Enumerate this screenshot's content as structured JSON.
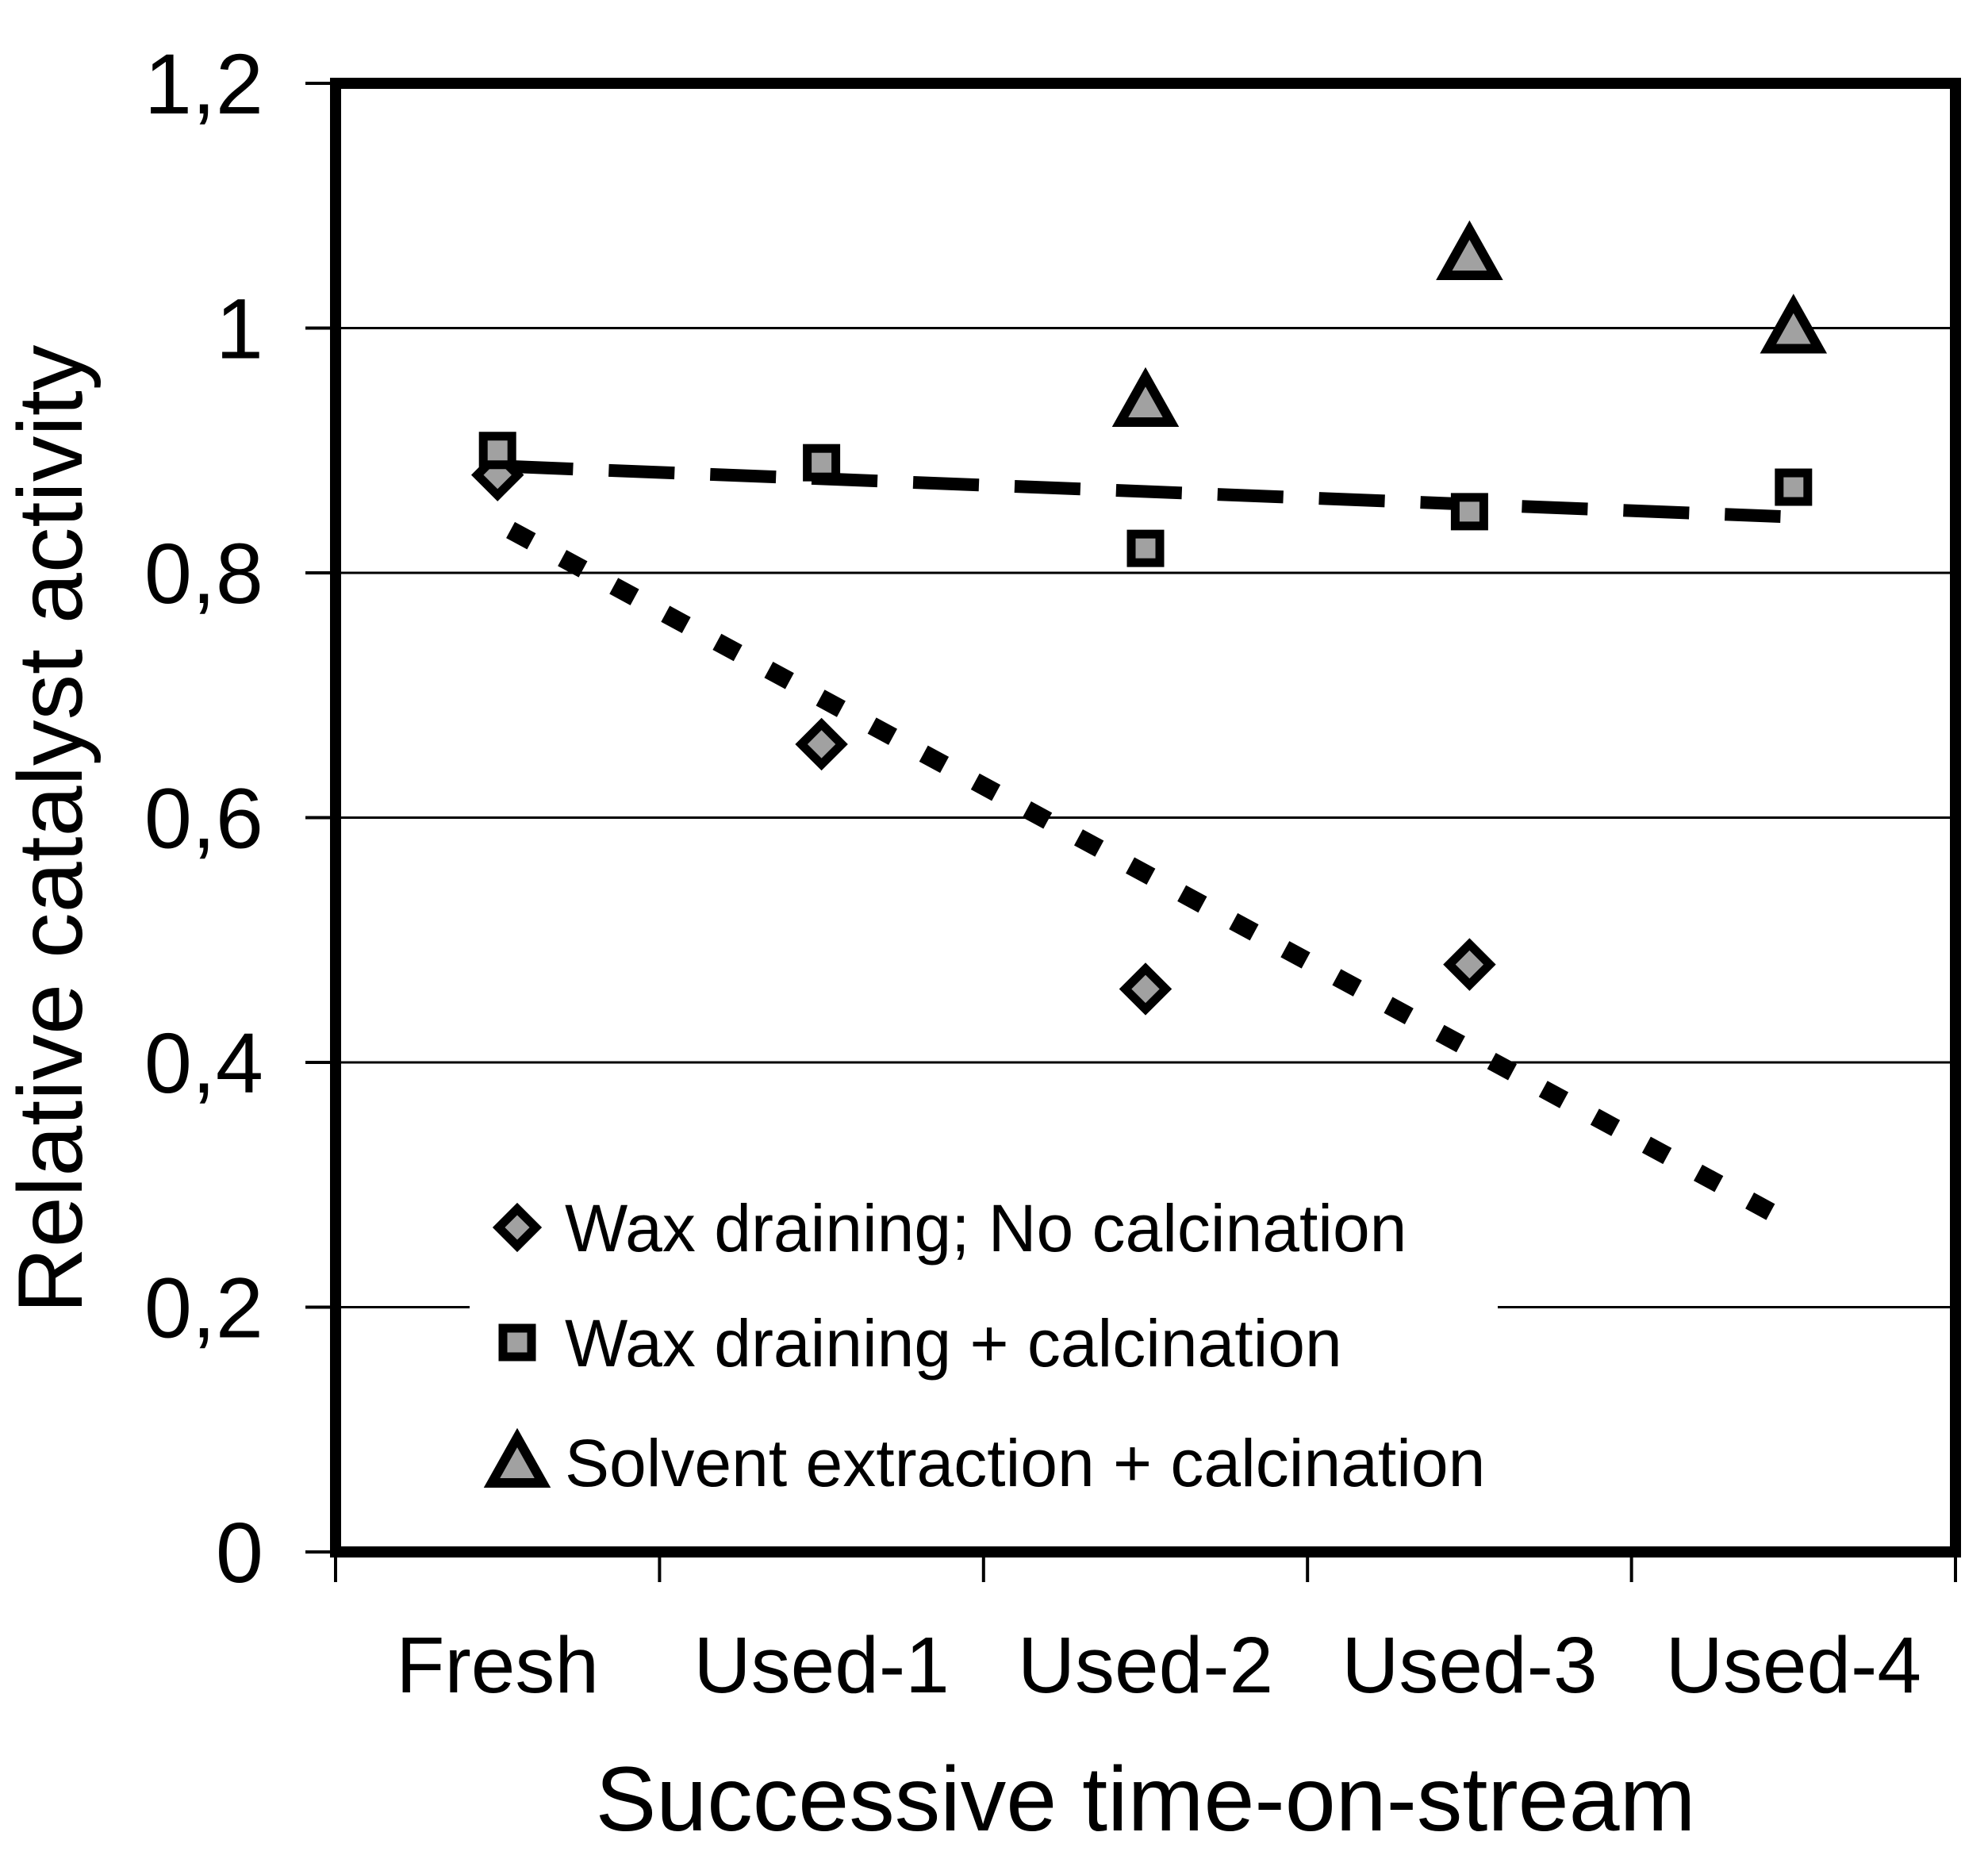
{
  "chart_data": {
    "type": "scatter",
    "title": "",
    "xlabel": "Successive time-on-stream",
    "ylabel": "Relative catalyst activity",
    "categories": [
      "Fresh",
      "Used-1",
      "Used-2",
      "Used-3",
      "Used-4"
    ],
    "ylim": [
      0,
      1.2
    ],
    "y_ticks": [
      {
        "value": 0,
        "label": "0"
      },
      {
        "value": 0.2,
        "label": "0,2"
      },
      {
        "value": 0.4,
        "label": "0,4"
      },
      {
        "value": 0.6,
        "label": "0,6"
      },
      {
        "value": 0.8,
        "label": "0,8"
      },
      {
        "value": 1,
        "label": "1"
      },
      {
        "value": 1.2,
        "label": "1,2"
      }
    ],
    "grid_values": [
      0.2,
      0.4,
      0.6,
      0.8,
      1.0
    ],
    "grid_on": true,
    "series": [
      {
        "name": "Wax draining; No calcination",
        "marker": "diamond",
        "points": [
          {
            "category": "Fresh",
            "cat": 0,
            "y": 0.88
          },
          {
            "category": "Used-1",
            "cat": 1,
            "y": 0.66
          },
          {
            "category": "Used-2",
            "cat": 2,
            "y": 0.46
          },
          {
            "category": "Used-3",
            "cat": 3,
            "y": 0.48
          }
        ]
      },
      {
        "name": "Wax draining + calcination",
        "marker": "square",
        "points": [
          {
            "category": "Fresh",
            "cat": 0,
            "y": 0.9
          },
          {
            "category": "Used-1",
            "cat": 1,
            "y": 0.89
          },
          {
            "category": "Used-2",
            "cat": 2,
            "y": 0.82
          },
          {
            "category": "Used-3",
            "cat": 3,
            "y": 0.85
          },
          {
            "category": "Used-4",
            "cat": 4,
            "y": 0.87
          }
        ]
      },
      {
        "name": "Solvent extraction + calcination",
        "marker": "triangle",
        "points": [
          {
            "category": "Used-2",
            "cat": 2,
            "y": 0.94
          },
          {
            "category": "Used-3",
            "cat": 3,
            "y": 1.06
          },
          {
            "category": "Used-4",
            "cat": 4,
            "y": 1.0
          }
        ]
      }
    ],
    "trendlines": [
      {
        "for_series": "Wax draining + calcination",
        "style": "long-dash",
        "from": {
          "cat": 0.03,
          "y": 0.887
        },
        "to": {
          "cat": 3.96,
          "y": 0.846
        }
      },
      {
        "for_series": "Wax draining; No calcination",
        "style": "dotted",
        "from": {
          "cat": 0.04,
          "y": 0.835
        },
        "to": {
          "cat": 3.97,
          "y": 0.272
        }
      }
    ],
    "legend": {
      "position": "inside-bottom-left",
      "items": [
        "Wax draining; No calcination",
        "Wax draining + calcination",
        "Solvent extraction + calcination"
      ]
    },
    "colors": {
      "marker_fill": "#a1a1a1",
      "marker_stroke": "#000000",
      "axis": "#000000",
      "grid": "#000000",
      "background": "#ffffff"
    }
  }
}
